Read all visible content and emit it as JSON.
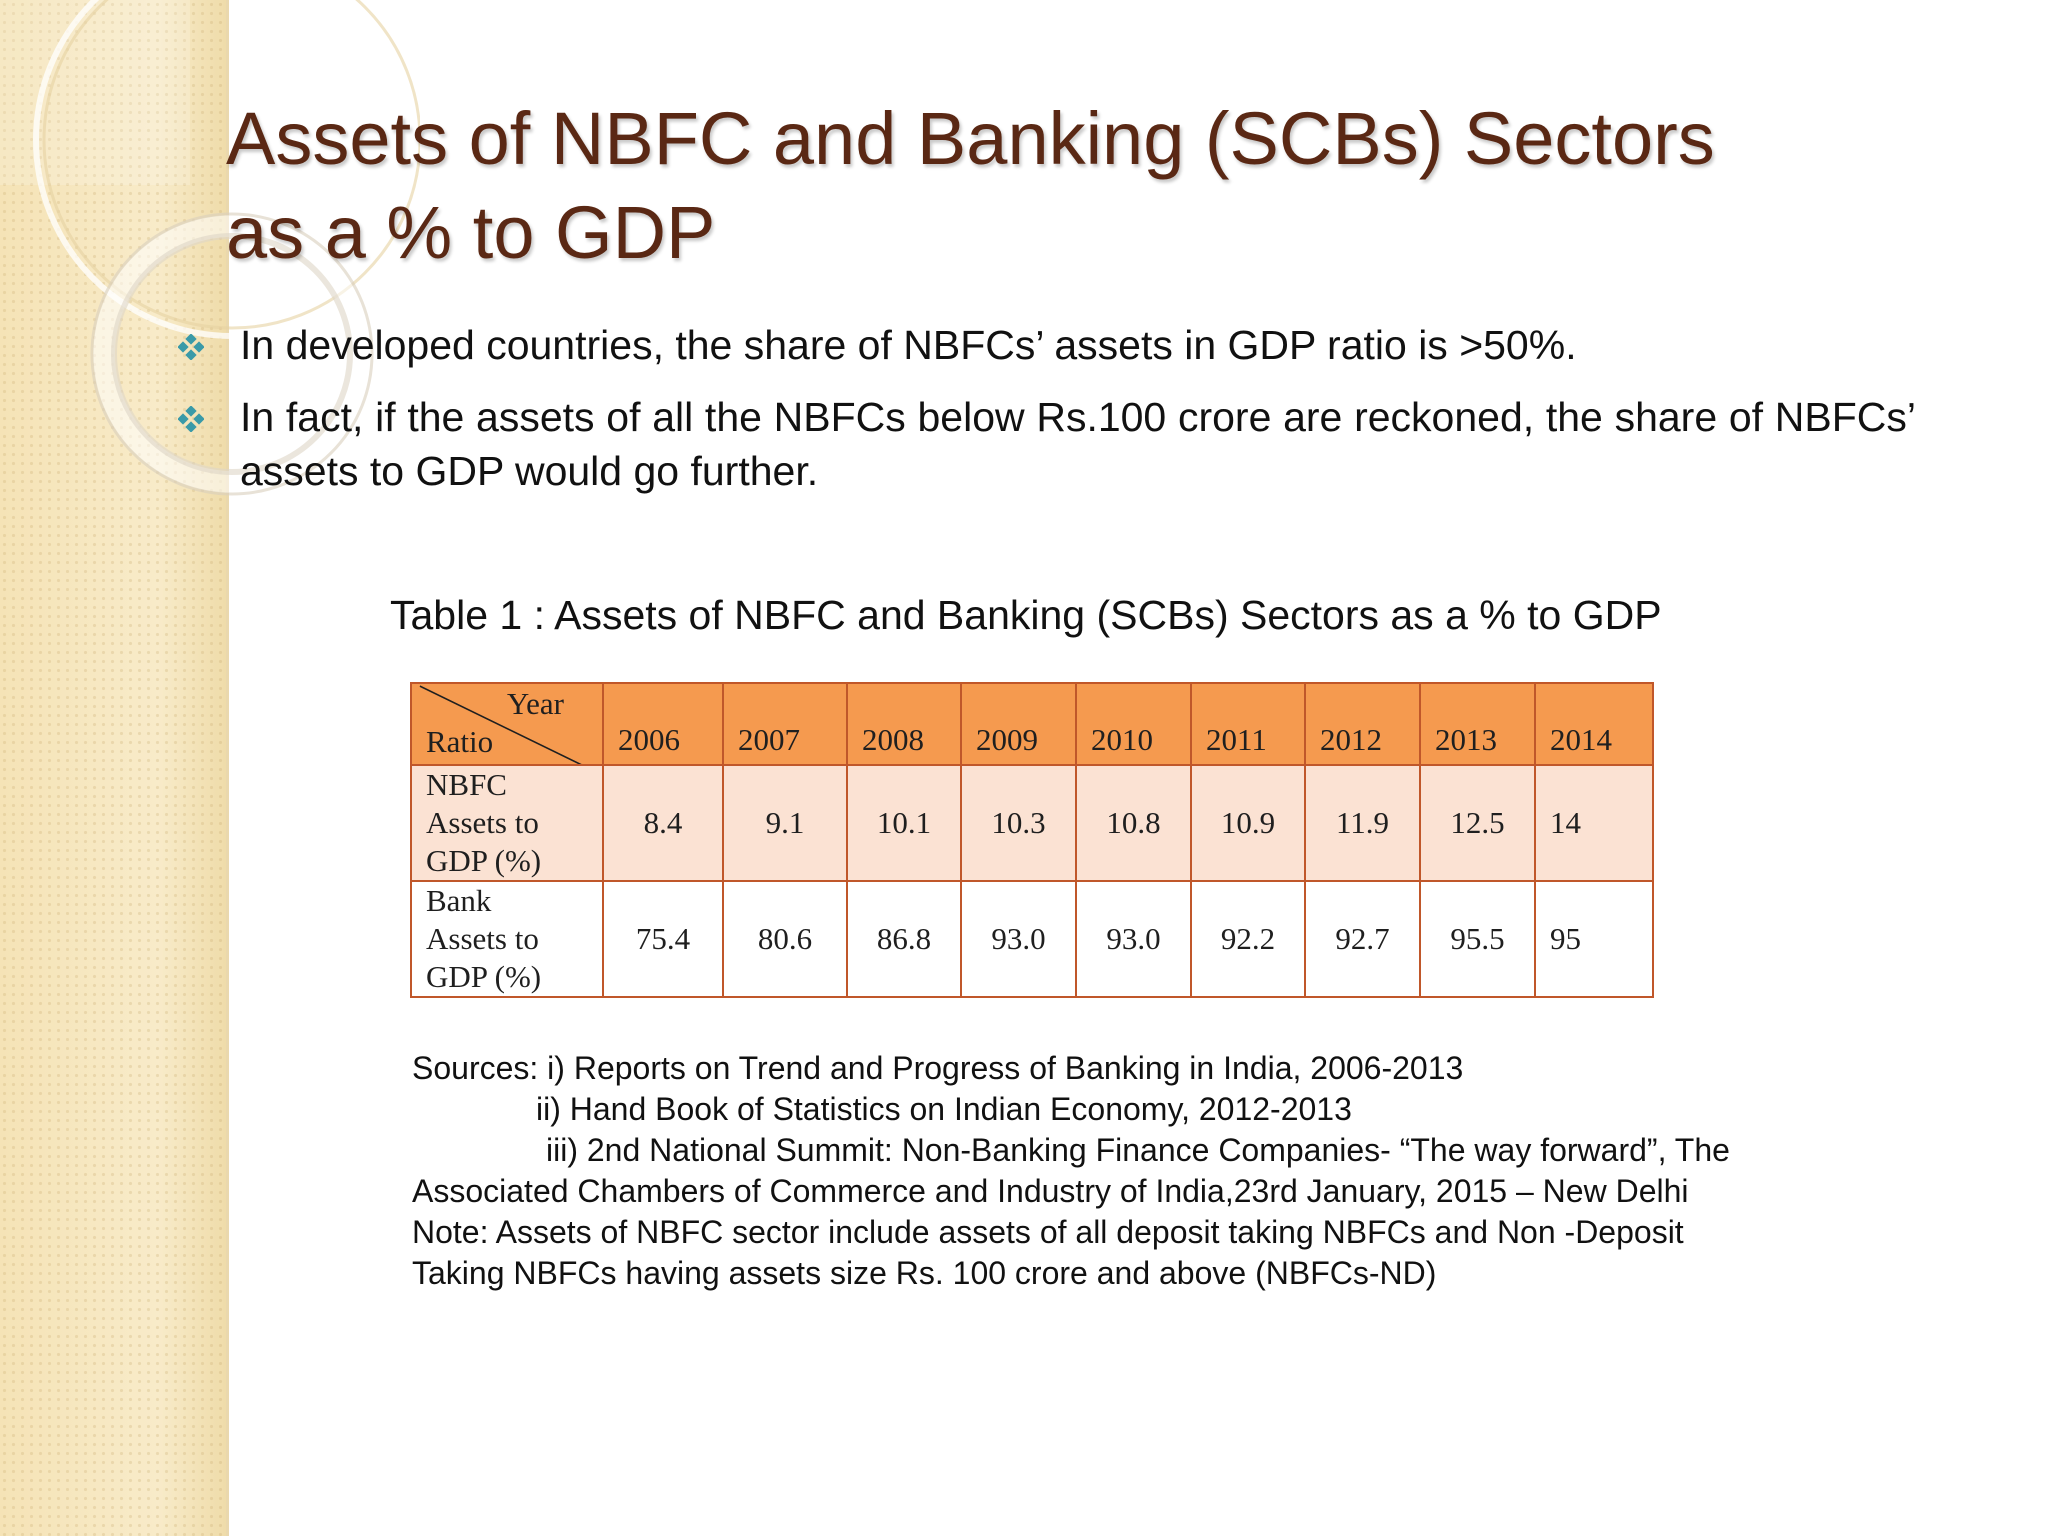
{
  "slide": {
    "title_lines": [
      "Assets of NBFC and Banking (SCBs) Sectors",
      "as a % to GDP"
    ],
    "bullets": [
      "In developed countries, the share of NBFCs’ assets in GDP ratio is >50%.",
      "In fact, if the assets of all the NBFCs below Rs.100 crore are reckoned, the share of NBFCs’ assets to GDP would go further."
    ],
    "table_caption": "Table 1 : Assets of NBFC and Banking (SCBs) Sectors as a % to GDP",
    "table": {
      "corner_top": "Year",
      "corner_bottom": "Ratio",
      "years": [
        "2006",
        "2007",
        "2008",
        "2009",
        "2010",
        "2011",
        "2012",
        "2013",
        "2014"
      ],
      "rows": [
        {
          "label_lines": [
            "NBFC",
            "Assets to",
            "GDP (%)"
          ],
          "values": [
            "8.4",
            "9.1",
            "10.1",
            "10.3",
            "10.8",
            "10.9",
            "11.9",
            "12.5",
            "14"
          ]
        },
        {
          "label_lines": [
            "Bank",
            "Assets to",
            "GDP (%)"
          ],
          "values": [
            "75.4",
            "80.6",
            "86.8",
            "93.0",
            "93.0",
            "92.2",
            "92.7",
            "95.5",
            "95"
          ]
        }
      ]
    },
    "sources_lines": [
      "Sources: i)  Reports on Trend and Progress of Banking in India, 2006-2013",
      "ii) Hand Book of Statistics on Indian Economy, 2012-2013",
      "iii) 2nd National Summit:  Non-Banking Finance Companies- “The way forward”, The",
      "Associated Chambers of Commerce and Industry of India,23rd January, 2015 – New Delhi",
      "Note: Assets of NBFC sector include assets of all deposit taking NBFCs and Non -Deposit",
      "Taking NBFCs having assets size Rs. 100 crore and above (NBFCs-ND)"
    ]
  },
  "colors": {
    "title": "#5a2814",
    "header_fill": "#f59a4f",
    "nbfc_row_fill": "#fbe2d3",
    "table_border": "#c0572a",
    "side_band": "#f6e6bd",
    "bullet": "#3a9aa8"
  },
  "icons": {
    "bullet": "diamond-cluster-bullet-icon"
  }
}
